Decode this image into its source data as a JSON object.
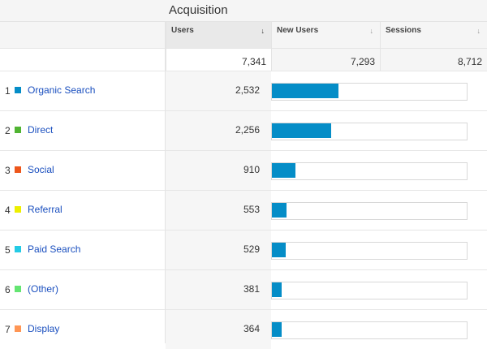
{
  "header": {
    "group_label": "Acquisition"
  },
  "columns": [
    {
      "label": "Users",
      "sort_icon": "↓",
      "active": true
    },
    {
      "label": "New Users",
      "sort_icon": "↓",
      "active": false
    },
    {
      "label": "Sessions",
      "sort_icon": "↓",
      "active": false
    }
  ],
  "totals": {
    "users": "7,341",
    "new_users": "7,293",
    "sessions": "8,712"
  },
  "colors": {
    "bar": "#058dc7",
    "link": "#1a4fbf"
  },
  "rows": [
    {
      "rank": "1",
      "channel": "Organic Search",
      "color": "#058dc7",
      "users": "2,532",
      "users_num": 2532
    },
    {
      "rank": "2",
      "channel": "Direct",
      "color": "#50b432",
      "users": "2,256",
      "users_num": 2256
    },
    {
      "rank": "3",
      "channel": "Social",
      "color": "#ed561b",
      "users": "910",
      "users_num": 910
    },
    {
      "rank": "4",
      "channel": "Referral",
      "color": "#edef00",
      "users": "553",
      "users_num": 553
    },
    {
      "rank": "5",
      "channel": "Paid Search",
      "color": "#24cbe5",
      "users": "529",
      "users_num": 529
    },
    {
      "rank": "6",
      "channel": "(Other)",
      "color": "#64e572",
      "users": "381",
      "users_num": 381
    },
    {
      "rank": "7",
      "channel": "Display",
      "color": "#ff9655",
      "users": "364",
      "users_num": 364
    }
  ]
}
